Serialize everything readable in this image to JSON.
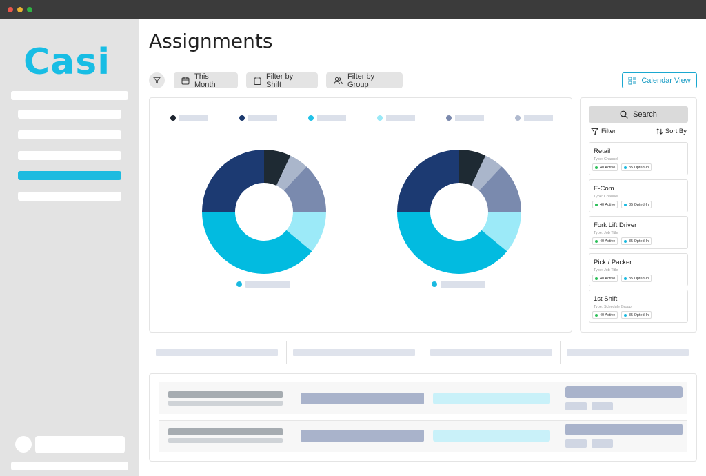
{
  "app": {
    "logo_text": "Casi",
    "brand_color": "#18bde4",
    "window_controls": [
      "#e9574b",
      "#e9b132",
      "#2fb344"
    ]
  },
  "sidebar": {
    "active_index": 4,
    "item_count": 6
  },
  "header": {
    "title": "Assignments"
  },
  "toolbar": {
    "filter_icon": "filter-icon",
    "this_month_label": "This Month",
    "filter_shift_label": "Filter by Shift",
    "filter_group_label": "Filter by Group",
    "calendar_view_label": "Calendar View"
  },
  "charts": {
    "legend_colors": [
      "#1e2530",
      "#1c3a6e",
      "#22c2e8",
      "#9ae9f7",
      "#7b89ad",
      "#b0bacf"
    ],
    "donuts": [
      {
        "segments": [
          {
            "color": "#1e2a33",
            "value": 7
          },
          {
            "color": "#aab6cb",
            "value": 5
          },
          {
            "color": "#7a8aae",
            "value": 13
          },
          {
            "color": "#9ceaf8",
            "value": 11
          },
          {
            "color": "#02bbe0",
            "value": 39
          },
          {
            "color": "#1c3a72",
            "value": 25
          }
        ],
        "legend_color": "#1ab9e0"
      },
      {
        "segments": [
          {
            "color": "#1e2a33",
            "value": 7
          },
          {
            "color": "#aab6cb",
            "value": 5
          },
          {
            "color": "#7a8aae",
            "value": 13
          },
          {
            "color": "#9ceaf8",
            "value": 11
          },
          {
            "color": "#02bbe0",
            "value": 39
          },
          {
            "color": "#1c3a72",
            "value": 25
          }
        ],
        "legend_color": "#1ab9e0"
      }
    ]
  },
  "side_panel": {
    "search_label": "Search",
    "filter_label": "Filter",
    "sort_label": "Sort By",
    "items": [
      {
        "title": "Retail",
        "subtitle": "Type: Channel",
        "active": "40 Active",
        "opted": "35 Opted-In"
      },
      {
        "title": "E-Com",
        "subtitle": "Type: Channel",
        "active": "40 Active",
        "opted": "35 Opted-In"
      },
      {
        "title": "Fork Lift Driver",
        "subtitle": "Type: Job Title",
        "active": "40 Active",
        "opted": "35 Opted-In"
      },
      {
        "title": "Pick / Packer",
        "subtitle": "Type: Job Title",
        "active": "40 Active",
        "opted": "35 Opted-In"
      },
      {
        "title": "1st Shift",
        "subtitle": "Type: Schedule Group",
        "active": "40 Active",
        "opted": "35 Opted-In"
      }
    ],
    "active_color": "#2ebf5a",
    "opted_color": "#1ab9e0"
  }
}
